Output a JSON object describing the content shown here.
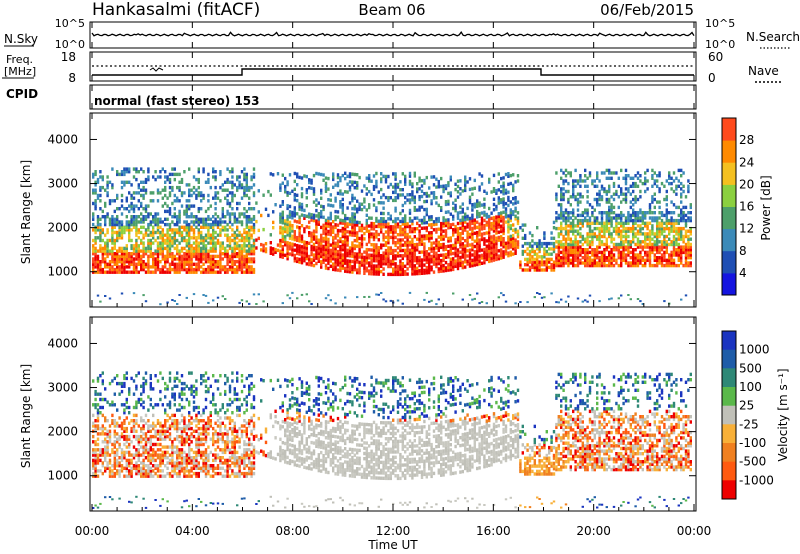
{
  "header": {
    "station": "Hankasalmi (fitACF)",
    "beam": "Beam 06",
    "date": "06/Feb/2015"
  },
  "noise_panel": {
    "left_label": "N.Sky",
    "right_label": "N.Search",
    "left_ticks": [
      "10^5",
      "10^0"
    ],
    "right_ticks": [
      "10^5",
      "10^0"
    ]
  },
  "freq_panel": {
    "left_label_line1": "Freq.",
    "left_label_line2": "[MHz]",
    "left_ticks": [
      "18",
      "8"
    ],
    "right_label": "Nave",
    "right_ticks": [
      "60",
      "0"
    ]
  },
  "cpid_panel": {
    "label": "CPID",
    "text": "normal (fast stereo) 153"
  },
  "colors": {
    "power": [
      "#1515e0",
      "#1f4fb4",
      "#3b8ab8",
      "#4d9f6a",
      "#8bd040",
      "#f4c020",
      "#ff8a00",
      "#ff4a1c",
      "#ee0000"
    ],
    "velocity": [
      "#1a34c0",
      "#1e5ca8",
      "#2e8876",
      "#5ab84a",
      "#a8d870",
      "#c0c0b8",
      "#c8c8c0",
      "#f8b038",
      "#f08020",
      "#ff5a10",
      "#ee0000"
    ]
  },
  "chart_data": [
    {
      "type": "heatmap",
      "parameter": "Power",
      "ylabel": "Slant Range [km]",
      "colorbar_label": "Power [dB]",
      "colorbar_ticks": [
        "4",
        "8",
        "12",
        "16",
        "20",
        "24",
        "28"
      ],
      "y_ticks": [
        "1000",
        "2000",
        "3000",
        "4000"
      ],
      "ylim": [
        200,
        4600
      ],
      "xlim": [
        "00:00",
        "24:00"
      ],
      "zlim": [
        0,
        32
      ]
    },
    {
      "type": "heatmap",
      "parameter": "Velocity",
      "ylabel": "Slant Range [km]",
      "colorbar_label": "Velocity [m s⁻¹]",
      "colorbar_ticks": [
        "1000",
        "500",
        "100",
        "25",
        "-25",
        "-100",
        "-500",
        "-1000"
      ],
      "y_ticks": [
        "1000",
        "2000",
        "3000",
        "4000"
      ],
      "ylim": [
        200,
        4600
      ],
      "xlim": [
        "00:00",
        "24:00"
      ],
      "zlim": [
        -1200,
        1200
      ]
    }
  ],
  "time_axis": {
    "ticks": [
      "00:00",
      "04:00",
      "08:00",
      "12:00",
      "16:00",
      "20:00",
      "00:00"
    ],
    "title": "Time UT"
  }
}
